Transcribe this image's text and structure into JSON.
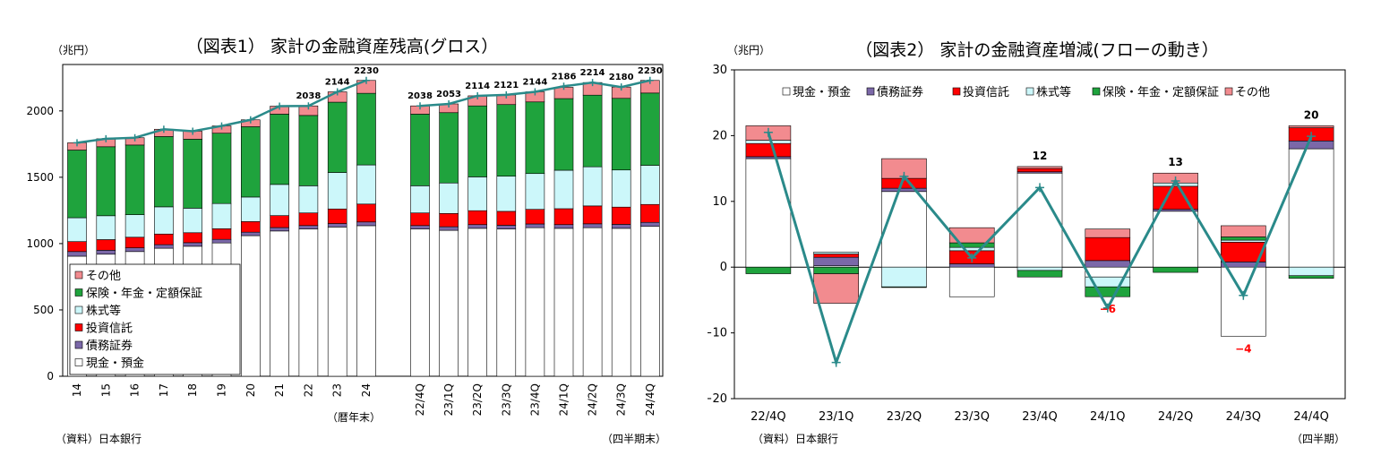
{
  "chart_data": [
    {
      "type": "bar",
      "stacked": true,
      "title": "（図表1） 家計の金融資産残高(グロス）",
      "unit_label": "（兆円）",
      "source": "（資料）日本銀行",
      "group_labels": [
        "（暦年末）",
        "（四半期末）"
      ],
      "categories": [
        "14",
        "15",
        "16",
        "17",
        "18",
        "19",
        "20",
        "21",
        "22",
        "23",
        "24",
        "22/4Q",
        "23/1Q",
        "23/2Q",
        "23/3Q",
        "23/4Q",
        "24/1Q",
        "24/2Q",
        "24/3Q",
        "24/4Q"
      ],
      "ylim": [
        0,
        2400
      ],
      "yticks": [
        0,
        500,
        1000,
        1500,
        2000
      ],
      "grid": false,
      "legend_position": "bottom-left",
      "legend_order": [
        5,
        4,
        3,
        2,
        1,
        0
      ],
      "series": [
        {
          "name": "現金・預金",
          "color": "#ffffff",
          "values": [
            905,
            920,
            940,
            965,
            980,
            1005,
            1060,
            1095,
            1110,
            1125,
            1135,
            1110,
            1100,
            1115,
            1110,
            1120,
            1115,
            1120,
            1115,
            1130
          ]
        },
        {
          "name": "債務証券",
          "color": "#7b68a8",
          "values": [
            35,
            30,
            28,
            27,
            27,
            27,
            26,
            26,
            26,
            26,
            28,
            26,
            27,
            28,
            28,
            28,
            28,
            29,
            30,
            30
          ]
        },
        {
          "name": "投資信託",
          "color": "#ff0000",
          "values": [
            75,
            80,
            80,
            80,
            75,
            80,
            80,
            90,
            95,
            110,
            135,
            95,
            100,
            105,
            105,
            110,
            120,
            135,
            130,
            135
          ]
        },
        {
          "name": "株式等",
          "color": "#ccf7fa",
          "values": [
            180,
            180,
            170,
            205,
            185,
            190,
            185,
            235,
            205,
            275,
            295,
            205,
            230,
            255,
            265,
            270,
            290,
            295,
            280,
            295
          ]
        },
        {
          "name": "保険・年金・定額保証",
          "color": "#1fa33d",
          "values": [
            510,
            520,
            525,
            530,
            520,
            530,
            530,
            530,
            530,
            530,
            540,
            540,
            530,
            535,
            540,
            540,
            540,
            540,
            540,
            545
          ]
        },
        {
          "name": "その他",
          "color": "#f28b8f",
          "values": [
            55,
            60,
            55,
            55,
            60,
            55,
            52,
            60,
            72,
            78,
            97,
            62,
            66,
            76,
            73,
            76,
            85,
            95,
            85,
            95
          ]
        }
      ],
      "total_line": {
        "color": "#2a8a8a",
        "values": [
          1760,
          1790,
          1798,
          1862,
          1847,
          1887,
          1933,
          2036,
          2038,
          2144,
          2230,
          2038,
          2053,
          2114,
          2121,
          2144,
          2186,
          2214,
          2180,
          2230
        ]
      },
      "total_labels": [
        "",
        "",
        "",
        "",
        "",
        "",
        "",
        "",
        "2038",
        "2144",
        "2230",
        "2038",
        "2053",
        "2114",
        "2121",
        "2144",
        "2186",
        "2214",
        "2180",
        "2230"
      ]
    },
    {
      "type": "bar",
      "stacked": true,
      "title": "（図表2） 家計の金融資産増減(フローの動き）",
      "unit_label": "（兆円）",
      "source": "（資料）日本銀行",
      "period_label": "（四半期）",
      "categories": [
        "22/4Q",
        "23/1Q",
        "23/2Q",
        "23/3Q",
        "23/4Q",
        "24/1Q",
        "24/2Q",
        "24/3Q",
        "24/4Q"
      ],
      "ylim": [
        -20,
        30
      ],
      "yticks": [
        -20,
        -10,
        0,
        10,
        20,
        30
      ],
      "grid": false,
      "legend_position": "top",
      "series": [
        {
          "name": "現金・預金",
          "color": "#ffffff",
          "values": [
            16.5,
            0.2,
            11.5,
            -4.5,
            14.3,
            -1.5,
            8.5,
            -10.5,
            18
          ]
        },
        {
          "name": "債務証券",
          "color": "#7b68a8",
          "values": [
            0.3,
            1.3,
            0.5,
            0.5,
            0.2,
            1.0,
            0.3,
            0.8,
            1.2
          ]
        },
        {
          "name": "投資信託",
          "color": "#ff0000",
          "values": [
            2.0,
            0.5,
            1.5,
            2.0,
            0.5,
            3.5,
            3.5,
            3.0,
            2.0
          ]
        },
        {
          "name": "株式等",
          "color": "#ccf7fa",
          "values": [
            0.5,
            0.3,
            -3.0,
            0.5,
            -0.5,
            -1.5,
            0.5,
            0.3,
            -1.3
          ]
        },
        {
          "name": "保険・年金・定額保証",
          "color": "#1fa33d",
          "values": [
            -1.0,
            -1.0,
            -0.1,
            0.7,
            -1.0,
            -1.5,
            -0.8,
            0.5,
            -0.4
          ]
        },
        {
          "name": "その他",
          "color": "#f28b8f",
          "values": [
            2.2,
            -4.5,
            3.0,
            2.3,
            0.3,
            1.3,
            1.5,
            1.7,
            0.3
          ]
        }
      ],
      "total_line": {
        "color": "#2a8a8a",
        "values": [
          20.5,
          -14.5,
          13.8,
          1.4,
          12.1,
          -6.2,
          13.1,
          -4.3,
          19.9
        ]
      },
      "total_labels": [
        {
          "idx": 4,
          "text": "12",
          "color": "#000000"
        },
        {
          "idx": 5,
          "text": "−6",
          "color": "#ff0000"
        },
        {
          "idx": 6,
          "text": "13",
          "color": "#000000"
        },
        {
          "idx": 7,
          "text": "−4",
          "color": "#ff0000"
        },
        {
          "idx": 8,
          "text": "20",
          "color": "#000000"
        }
      ]
    }
  ]
}
